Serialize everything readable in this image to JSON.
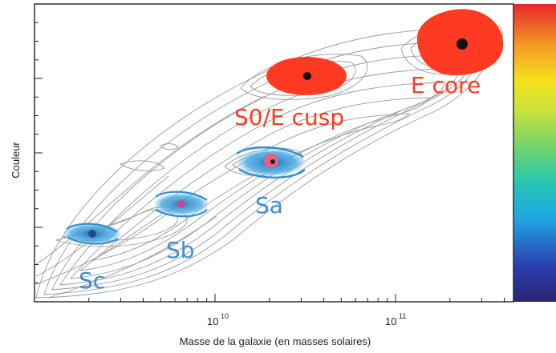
{
  "chart_data": {
    "type": "scatter",
    "title": "",
    "xlabel": "Masse de la galaxie (en masses solaires)",
    "ylabel": "Couleur",
    "x_scale": "log",
    "x_ticks": [
      {
        "base": "10",
        "exp": "10",
        "value": 10000000000.0
      },
      {
        "base": "10",
        "exp": "11",
        "value": 100000000000.0
      }
    ],
    "xlim": [
      1000000000.0,
      450000000000.0
    ],
    "ylim": [
      0,
      4
    ],
    "grid": false,
    "legend": "none",
    "background": "density contours (grey)",
    "colorbar": "rainbow (blue bottom to red top), right side",
    "points": [
      {
        "label": "Sc",
        "mass": 2000000000.0,
        "color_index": 0.9,
        "kind": "spiral",
        "color": "#2f8fd0"
      },
      {
        "label": "Sb",
        "mass": 6000000000.0,
        "color_index": 1.3,
        "kind": "spiral",
        "color": "#2f8fd0"
      },
      {
        "label": "Sa",
        "mass": 20000000000.0,
        "color_index": 1.85,
        "kind": "spiral",
        "color": "#2f8fd0"
      },
      {
        "label": "S0/E cusp",
        "mass": 32000000000.0,
        "color_index": 2.95,
        "kind": "elliptical",
        "color": "#ff3322"
      },
      {
        "label": "E core",
        "mass": 230000000000.0,
        "color_index": 3.5,
        "kind": "elliptical",
        "color": "#ff3322"
      }
    ]
  }
}
